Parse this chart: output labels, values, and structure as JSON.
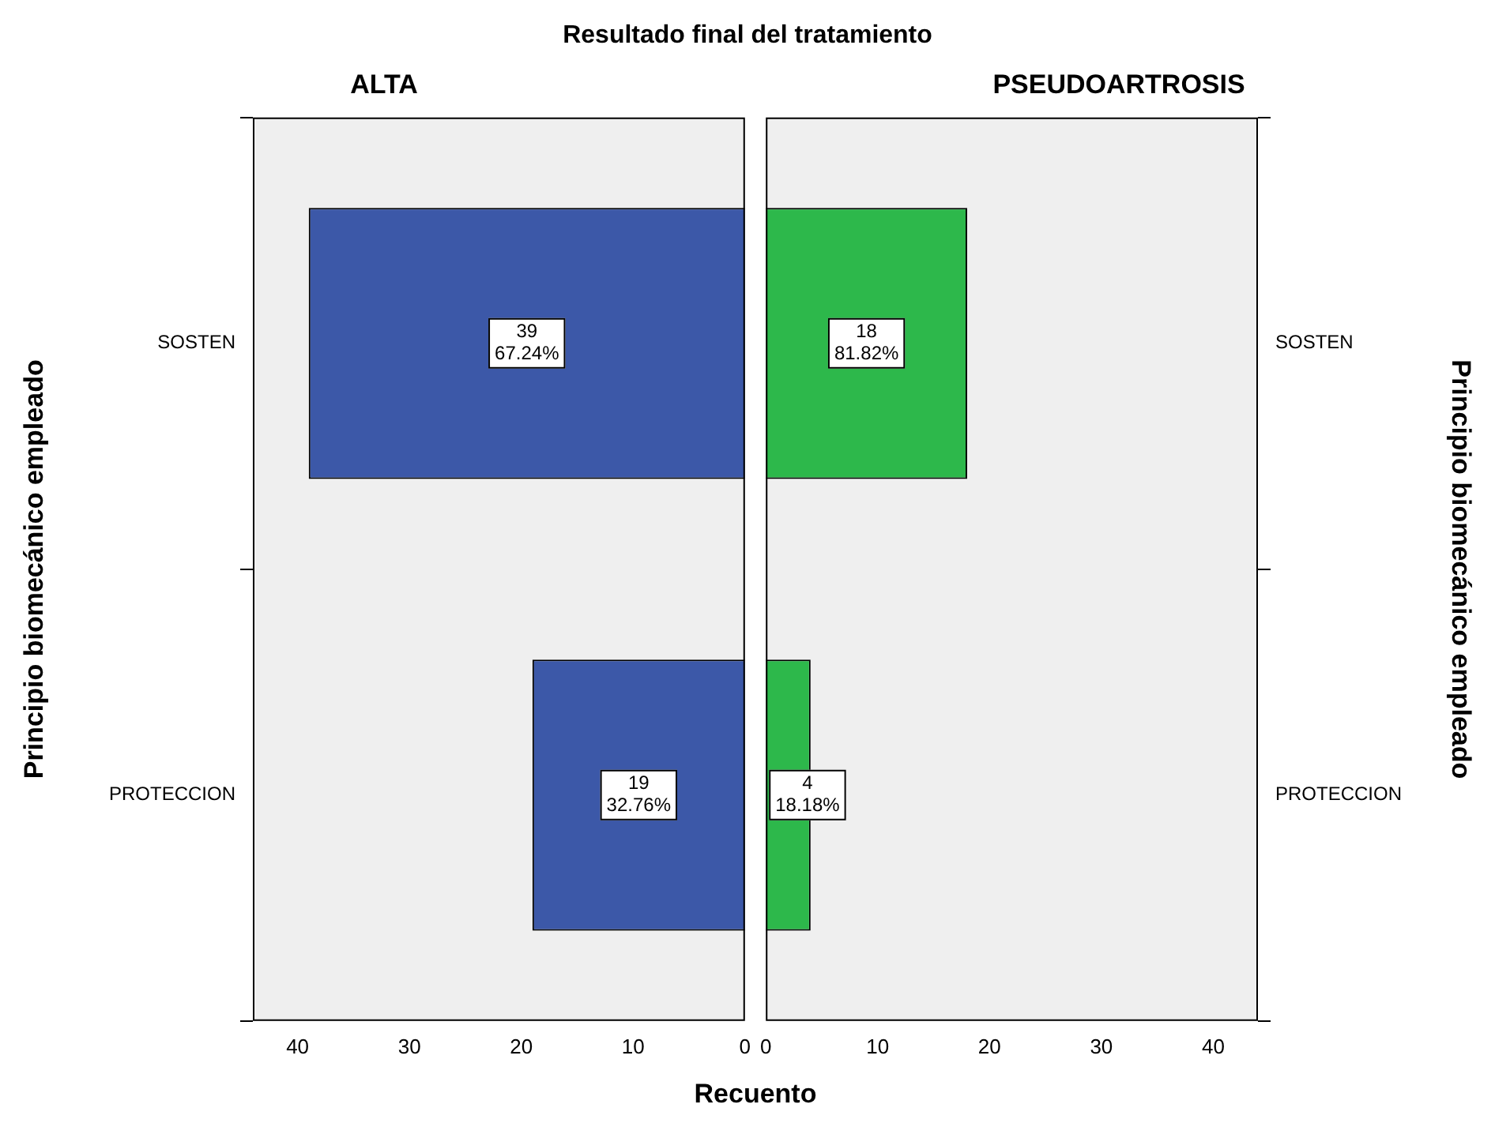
{
  "chart_data": [
    {
      "type": "bar",
      "orientation": "horizontal",
      "title": "ALTA",
      "annotations": [
        "Resultado final del tratamiento"
      ],
      "xlabel": "Recuento",
      "ylabel": "Principio biomecánico empleado",
      "categories": [
        "SOSTEN",
        "PROTECCION"
      ],
      "values": [
        39,
        19
      ],
      "color": "#3c58a8",
      "value_labels": [
        "39\n67.24%",
        "19\n32.76%"
      ],
      "xlim": [
        44,
        0
      ],
      "xticks": [
        40,
        30,
        20,
        10,
        0
      ],
      "grid": false,
      "legend": false
    },
    {
      "type": "bar",
      "orientation": "horizontal",
      "title": "PSEUDOARTROSIS",
      "ylabel": "Principio biomecánico empleado",
      "categories": [
        "SOSTEN",
        "PROTECCION"
      ],
      "values": [
        18,
        4
      ],
      "color": "#2db84b",
      "value_labels": [
        "18\n81.82%",
        "4\n18.18%"
      ],
      "xlim": [
        0,
        44
      ],
      "xticks": [
        0,
        10,
        20,
        30,
        40
      ],
      "grid": false,
      "legend": false
    }
  ]
}
